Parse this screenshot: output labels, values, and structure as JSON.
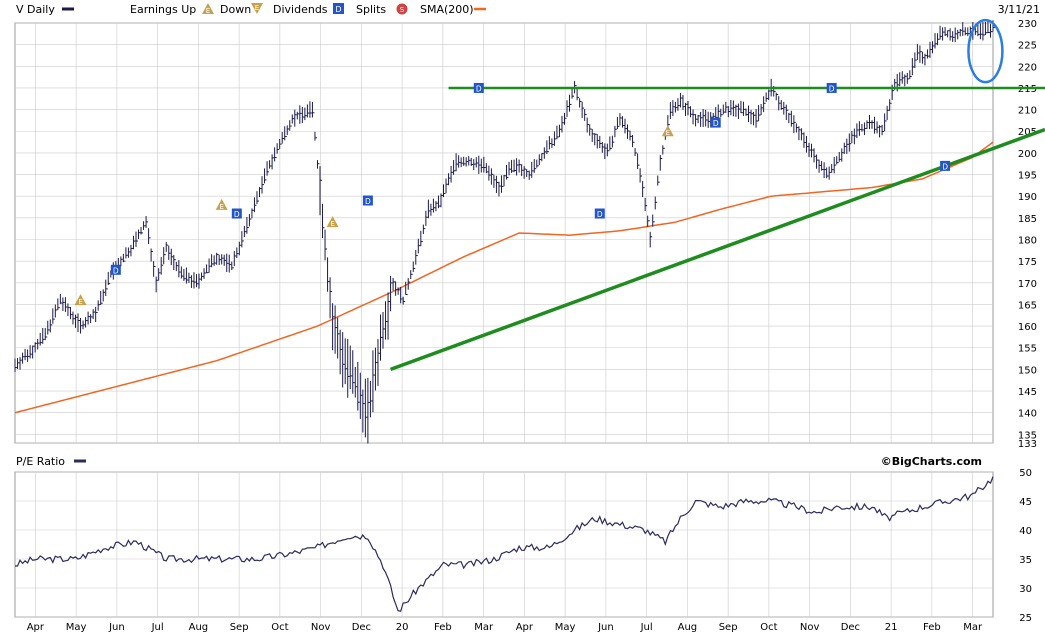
{
  "header": {
    "symbol_label": "V Daily",
    "earnings_up_label": "Earnings Up",
    "down_label": "Down",
    "dividends_label": "Dividends",
    "splits_label": "Splits",
    "sma_label": "SMA(200)",
    "date_label": "3/11/21",
    "earnings_icon_glyph": "E",
    "dividend_icon_glyph": "D",
    "split_icon_glyph": "S"
  },
  "lower_panel": {
    "title": "P/E Ratio",
    "watermark": "©BigCharts.com"
  },
  "colors": {
    "price_bars": "#1a1a4e",
    "sma": "#f26522",
    "trendline": "#1e8c1e",
    "earnings_marker": "#c9a14a",
    "dividend_marker": "#2255cc",
    "split_marker": "#cc4444",
    "highlight_circle": "#2a7de1",
    "grid": "#cccccc",
    "pe_line": "#2b2b5e"
  },
  "chart_data": [
    {
      "type": "ohlc",
      "ylim": [
        133,
        230
      ],
      "y_ticks": [
        133,
        135,
        140,
        145,
        150,
        155,
        160,
        165,
        170,
        175,
        180,
        185,
        190,
        195,
        200,
        205,
        210,
        215,
        220,
        225,
        230
      ],
      "x_labels": [
        "Apr",
        "May",
        "Jun",
        "Jul",
        "Aug",
        "Sep",
        "Oct",
        "Nov",
        "Dec",
        "20",
        "Feb",
        "Mar",
        "Apr",
        "May",
        "Jun",
        "Jul",
        "Aug",
        "Sep",
        "Oct",
        "Nov",
        "Dec",
        "21",
        "Feb",
        "Mar"
      ],
      "price_path": {
        "t": [
          0,
          6,
          12,
          18,
          26,
          32,
          38,
          46,
          52,
          56,
          60,
          66,
          72,
          80,
          86,
          92,
          100,
          110,
          118,
          122,
          126,
          132,
          140,
          146,
          150,
          154,
          160,
          164,
          168,
          175,
          180,
          186,
          192,
          196,
          200,
          204,
          210,
          216,
          222,
          228,
          231,
          235,
          240,
          245,
          248,
          252,
          256,
          260,
          264,
          270,
          276,
          282,
          288,
          294,
          300,
          305,
          311,
          316,
          322,
          328,
          334,
          339,
          344,
          349,
          355,
          358,
          361,
          364,
          368,
          372,
          376,
          380,
          384,
          388
        ],
        "close": [
          151,
          154,
          158,
          166,
          160,
          163,
          172,
          178,
          184,
          170,
          178,
          172,
          170,
          176,
          174,
          183,
          196,
          208,
          210,
          185,
          160,
          150,
          140,
          160,
          170,
          166,
          178,
          187,
          188,
          198,
          198,
          197,
          192,
          196,
          197,
          195,
          200,
          205,
          215,
          205,
          203,
          200,
          208,
          203,
          195,
          180,
          198,
          210,
          212,
          208,
          208,
          210,
          210,
          208,
          215,
          210,
          205,
          200,
          195,
          200,
          205,
          207,
          205,
          216,
          218,
          223,
          222,
          225,
          228,
          227,
          228,
          228,
          228,
          229
        ]
      },
      "sma_path": {
        "t": [
          0,
          40,
          80,
          120,
          150,
          178,
          200,
          220,
          240,
          262,
          280,
          300,
          320,
          340,
          360,
          380,
          388
        ],
        "value": [
          140,
          146,
          152,
          160,
          168,
          176,
          181.5,
          181,
          182,
          184,
          187,
          190,
          191,
          192,
          194,
          199,
          202.5
        ]
      },
      "pe_path": {
        "t": [
          0,
          8,
          16,
          24,
          36,
          48,
          60,
          72,
          84,
          96,
          110,
          120,
          132,
          140,
          146,
          152,
          160,
          170,
          180,
          190,
          200,
          212,
          222,
          230,
          240,
          250,
          258,
          264,
          270,
          280,
          290,
          300,
          310,
          318,
          326,
          334,
          340,
          346,
          352,
          360,
          370,
          380,
          388
        ],
        "value": [
          34,
          35,
          35,
          35,
          37,
          38,
          35,
          35,
          35,
          35,
          36,
          37,
          39,
          39,
          34,
          26,
          30,
          34,
          34,
          35,
          37,
          37,
          40,
          42,
          41,
          40,
          38,
          42,
          45,
          44,
          45,
          45,
          44,
          43,
          44,
          44,
          44,
          42,
          43,
          44,
          45,
          46,
          49
        ]
      },
      "pe_ylim": [
        25,
        50
      ],
      "pe_ticks": [
        25,
        30,
        35,
        40,
        45,
        50
      ],
      "horizontal_resistance": 215,
      "trendline_points": [
        [
          149,
          150
        ],
        [
          388,
          201
        ]
      ],
      "earnings_markers": [
        [
          26,
          166
        ],
        [
          82,
          188
        ],
        [
          126,
          184
        ],
        [
          259,
          205
        ]
      ],
      "dividend_markers": [
        [
          40,
          173
        ],
        [
          88,
          186
        ],
        [
          140,
          189
        ],
        [
          184,
          215
        ],
        [
          232,
          186
        ],
        [
          278,
          207
        ],
        [
          324,
          215
        ],
        [
          369,
          197
        ]
      ]
    }
  ]
}
